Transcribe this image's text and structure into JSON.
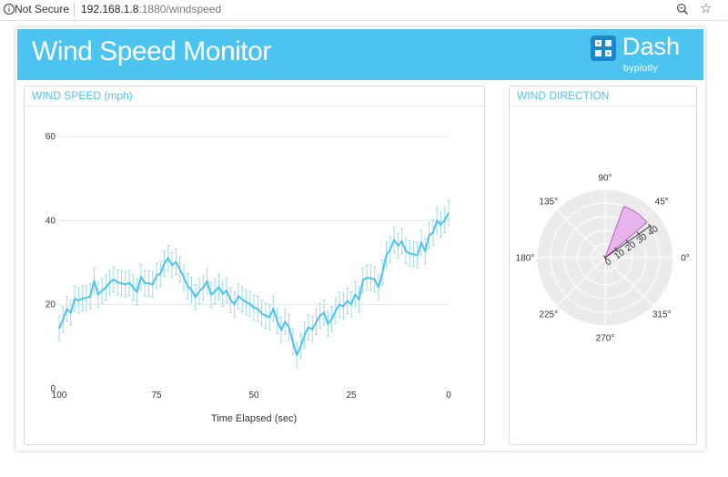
{
  "browser": {
    "security_label": "Not Secure",
    "url_host": "192.168.1.8",
    "url_rest": ":1880/windspeed",
    "icons": [
      "info-icon",
      "zoom-icon",
      "star-icon"
    ]
  },
  "header": {
    "title": "Wind Speed Monitor",
    "logo_word": "Dash",
    "logo_by": "byplotly",
    "color": "#4dc3f0"
  },
  "speed_panel": {
    "title": "WIND SPEED (mph)"
  },
  "direction_panel": {
    "title": "WIND DIRECTION"
  },
  "chart_data": [
    {
      "type": "line",
      "xlabel": "Time Elapsed (sec)",
      "ylabel": "",
      "xlim": [
        100,
        0
      ],
      "ylim": [
        0,
        60
      ],
      "x_ticks": [
        "100",
        "75",
        "50",
        "25",
        "0"
      ],
      "y_ticks": [
        "0",
        "20",
        "40",
        "60"
      ],
      "grid": true,
      "error_bars": 3,
      "line_color": "#4dc3f0",
      "x": [
        100,
        99,
        98,
        97,
        96,
        95,
        94,
        93,
        92,
        91,
        90,
        89,
        88,
        87,
        86,
        85,
        84,
        83,
        82,
        81,
        80,
        79,
        78,
        77,
        76,
        75,
        74,
        73,
        72,
        71,
        70,
        69,
        68,
        67,
        66,
        65,
        64,
        63,
        62,
        61,
        60,
        59,
        58,
        57,
        56,
        55,
        54,
        53,
        52,
        51,
        50,
        49,
        48,
        47,
        46,
        45,
        44,
        43,
        42,
        41,
        40,
        39,
        38,
        37,
        36,
        35,
        34,
        33,
        32,
        31,
        30,
        29,
        28,
        27,
        26,
        25,
        24,
        23,
        22,
        21,
        20,
        19,
        18,
        17,
        16,
        15,
        14,
        13,
        12,
        11,
        10,
        9,
        8,
        7,
        6,
        5,
        4,
        3,
        2,
        1,
        0
      ],
      "y": [
        14.3,
        16.5,
        19.0,
        18.1,
        21.4,
        21.0,
        21.5,
        21.6,
        22.0,
        25.7,
        22.4,
        23.3,
        24.1,
        25.3,
        26.0,
        25.3,
        25.1,
        24.8,
        25.2,
        24.1,
        23.0,
        26.6,
        25.1,
        25.1,
        24.8,
        26.9,
        27.4,
        29.8,
        31.1,
        29.4,
        30.2,
        28.4,
        26.5,
        24.4,
        23.5,
        21.8,
        23.2,
        24.1,
        25.6,
        22.3,
        23.2,
        24.2,
        22.6,
        23.4,
        21.1,
        20.1,
        22.0,
        21.3,
        20.6,
        20.2,
        19.3,
        19.0,
        17.9,
        17.4,
        17.0,
        19.0,
        16.1,
        14.0,
        15.9,
        14.7,
        11.2,
        8.0,
        10.1,
        12.7,
        14.6,
        14.1,
        15.9,
        17.4,
        18.1,
        15.4,
        16.6,
        18.6,
        20.0,
        19.6,
        20.9,
        20.1,
        22.4,
        21.2,
        25.8,
        26.4,
        26.3,
        26.0,
        24.1,
        27.6,
        31.8,
        33.1,
        35.4,
        34.0,
        35.1,
        32.8,
        32.2,
        32.0,
        31.8,
        34.8,
        32.7,
        36.5,
        37.2,
        40.0,
        39.0,
        40.1,
        41.8
      ]
    },
    {
      "type": "polar-bar",
      "theta_ticks": [
        "0°",
        "45°",
        "90°",
        "135°",
        "180°",
        "225°",
        "270°",
        "315°"
      ],
      "r_ticks": [
        "0",
        "10",
        "20",
        "30",
        "40"
      ],
      "r_max": 50,
      "sector": {
        "theta_from": 40,
        "theta_to": 70,
        "r": 40
      },
      "angular_axis_angle": 35,
      "sector_fill": "#e8b4ec",
      "sector_stroke": "#b565c4",
      "background": "#ebebeb"
    }
  ]
}
